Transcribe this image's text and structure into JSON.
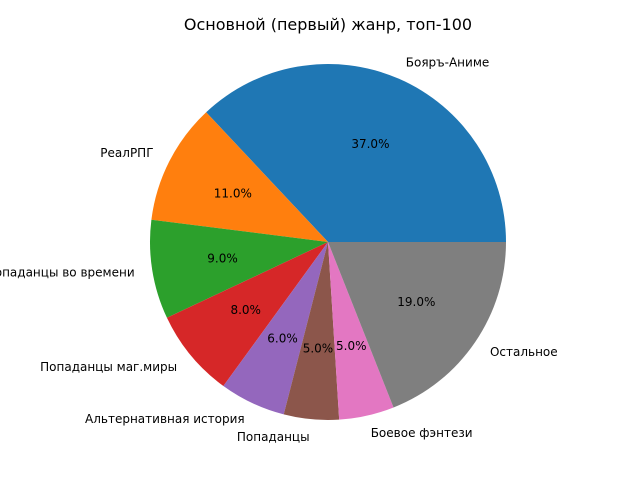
{
  "chart_data": {
    "type": "pie",
    "title": "Основной (первый) жанр, топ-100",
    "categories": [
      "Бояръ-Аниме",
      "РеалРПГ",
      "Попаданцы во времени",
      "Попаданцы маг.миры",
      "Альтернативная история",
      "Попаданцы",
      "Боевое фэнтези",
      "Остальное"
    ],
    "values": [
      37.0,
      11.0,
      9.0,
      8.0,
      6.0,
      5.0,
      5.0,
      19.0
    ],
    "value_labels": [
      "37.0%",
      "11.0%",
      "9.0%",
      "8.0%",
      "6.0%",
      "5.0%",
      "5.0%",
      "19.0%"
    ],
    "colors": [
      "#1f77b4",
      "#ff7f0e",
      "#2ca02c",
      "#d62728",
      "#9467bd",
      "#8c564b",
      "#e377c2",
      "#7f7f7f"
    ],
    "start_angle": "3 o'clock",
    "direction": "counterclockwise",
    "legend": "none"
  }
}
